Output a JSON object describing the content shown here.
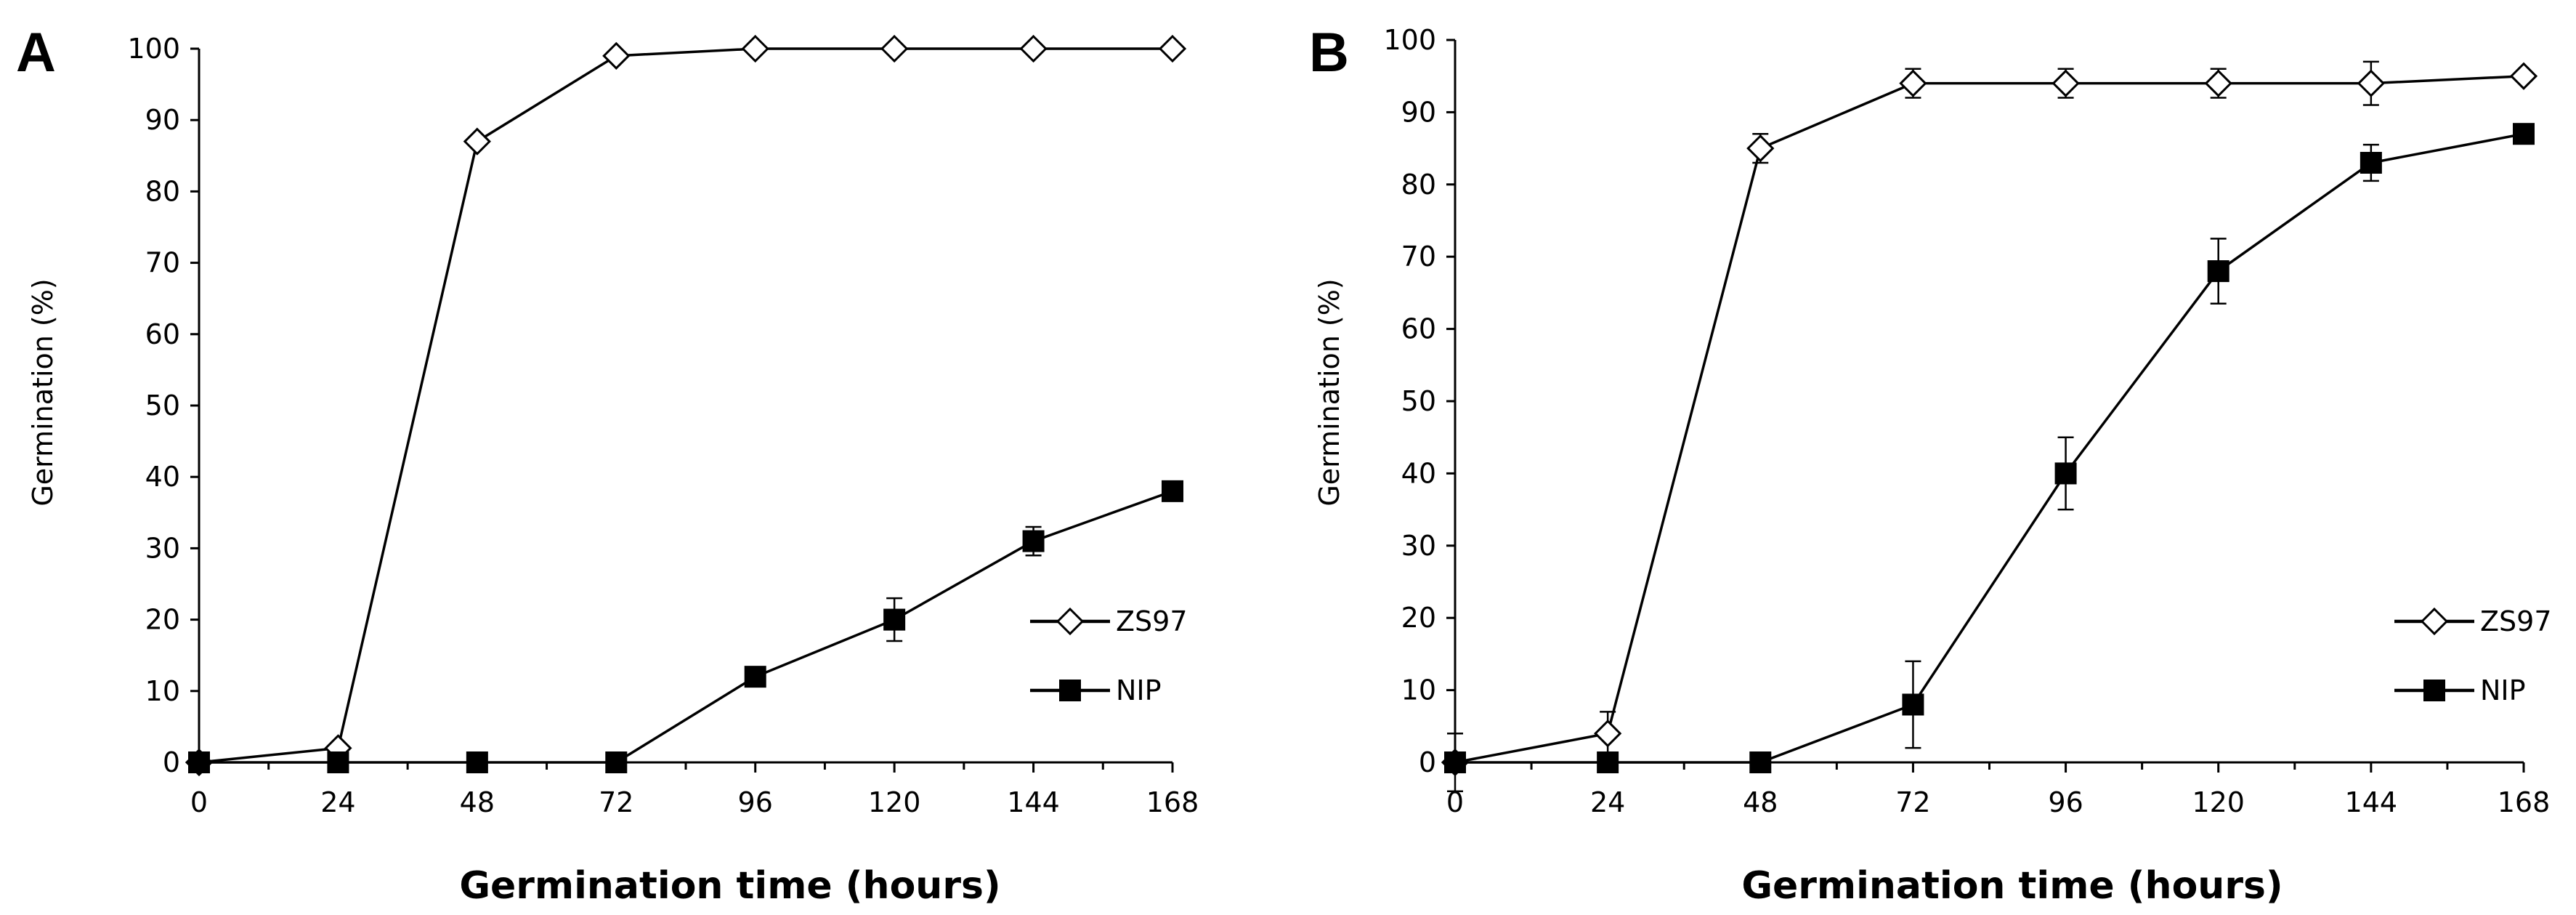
{
  "figure": {
    "background": "#ffffff",
    "ink": "#000000"
  },
  "chart_data": [
    {
      "type": "line",
      "panel": "A",
      "title": "",
      "xlabel": "Germination time (hours)",
      "ylabel": "Germination (%)",
      "x": [
        0,
        24,
        48,
        72,
        96,
        120,
        144,
        168
      ],
      "xlim": [
        0,
        168
      ],
      "ylim": [
        0,
        100
      ],
      "xticks": [
        0,
        24,
        48,
        72,
        96,
        120,
        144,
        168
      ],
      "yticks": [
        0,
        10,
        20,
        30,
        40,
        50,
        60,
        70,
        80,
        90,
        100
      ],
      "grid": false,
      "legend_position": "lower-right",
      "series": [
        {
          "name": "ZS97",
          "marker": "diamond-open",
          "values": [
            0,
            2,
            87,
            99,
            100,
            100,
            100,
            100
          ],
          "errors": [
            0,
            0,
            0,
            0,
            0,
            0,
            0,
            0
          ]
        },
        {
          "name": "NIP",
          "marker": "square-filled",
          "values": [
            0,
            0,
            0,
            0,
            12,
            20,
            31,
            38
          ],
          "errors": [
            0,
            0,
            0,
            0,
            0.5,
            3,
            2,
            0.5
          ]
        }
      ]
    },
    {
      "type": "line",
      "panel": "B",
      "title": "",
      "xlabel": "Germination time (hours)",
      "ylabel": "Germination (%)",
      "x": [
        0,
        24,
        48,
        72,
        96,
        120,
        144,
        168
      ],
      "xlim": [
        0,
        168
      ],
      "ylim": [
        0,
        100
      ],
      "xticks": [
        0,
        24,
        48,
        72,
        96,
        120,
        144,
        168
      ],
      "yticks": [
        0,
        10,
        20,
        30,
        40,
        50,
        60,
        70,
        80,
        90,
        100
      ],
      "grid": false,
      "legend_position": "lower-right",
      "series": [
        {
          "name": "ZS97",
          "marker": "diamond-open",
          "values": [
            0,
            4,
            85,
            94,
            94,
            94,
            94,
            95
          ],
          "errors": [
            4,
            3,
            2,
            2,
            2,
            2,
            3,
            0.5
          ]
        },
        {
          "name": "NIP",
          "marker": "square-filled",
          "values": [
            0,
            0,
            0,
            8,
            40,
            68,
            83,
            87
          ],
          "errors": [
            0,
            0,
            0,
            6,
            5,
            4.5,
            2.5,
            0.5
          ]
        }
      ]
    }
  ]
}
